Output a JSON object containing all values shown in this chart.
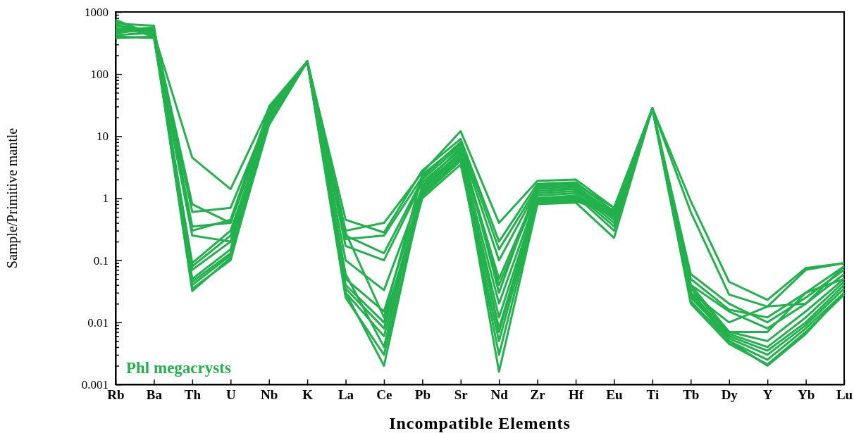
{
  "chart_data": {
    "type": "line",
    "xlabel": "Incompatible Elements",
    "ylabel": "Sample/Primitive mantle",
    "log": true,
    "grid": false,
    "marker": "none",
    "line_style": "solid",
    "categories": [
      "Rb",
      "Ba",
      "Th",
      "U",
      "Nb",
      "K",
      "La",
      "Ce",
      "Pb",
      "Sr",
      "Nd",
      "Zr",
      "Hf",
      "Eu",
      "Ti",
      "Tb",
      "Dy",
      "Y",
      "Yb",
      "Lu"
    ],
    "ylim": [
      0.001,
      1000
    ],
    "yticks": [
      {
        "value": 0.001,
        "label": "0.001"
      },
      {
        "value": 0.002,
        "label": null
      },
      {
        "value": 0.003,
        "label": null
      },
      {
        "value": 0.004,
        "label": null
      },
      {
        "value": 0.005,
        "label": null
      },
      {
        "value": 0.006,
        "label": null
      },
      {
        "value": 0.007,
        "label": null
      },
      {
        "value": 0.008,
        "label": null
      },
      {
        "value": 0.009,
        "label": null
      },
      {
        "value": 0.01,
        "label": "0.01"
      },
      {
        "value": 0.02,
        "label": null
      },
      {
        "value": 0.03,
        "label": null
      },
      {
        "value": 0.04,
        "label": null
      },
      {
        "value": 0.05,
        "label": null
      },
      {
        "value": 0.06,
        "label": null
      },
      {
        "value": 0.07,
        "label": null
      },
      {
        "value": 0.08,
        "label": null
      },
      {
        "value": 0.09,
        "label": null
      },
      {
        "value": 0.1,
        "label": "0.1"
      },
      {
        "value": 0.2,
        "label": null
      },
      {
        "value": 0.3,
        "label": null
      },
      {
        "value": 0.4,
        "label": null
      },
      {
        "value": 0.5,
        "label": null
      },
      {
        "value": 0.6,
        "label": null
      },
      {
        "value": 0.7,
        "label": null
      },
      {
        "value": 0.8,
        "label": null
      },
      {
        "value": 0.9,
        "label": null
      },
      1,
      {
        "value": 2,
        "label": null
      },
      {
        "value": 3,
        "label": null
      },
      {
        "value": 4,
        "label": null
      },
      {
        "value": 5,
        "label": null
      },
      {
        "value": 6,
        "label": null
      },
      {
        "value": 7,
        "label": null
      },
      {
        "value": 8,
        "label": null
      },
      {
        "value": 9,
        "label": null
      },
      10,
      {
        "value": 20,
        "label": null
      },
      {
        "value": 30,
        "label": null
      },
      {
        "value": 40,
        "label": null
      },
      {
        "value": 50,
        "label": null
      },
      {
        "value": 60,
        "label": null
      },
      {
        "value": 70,
        "label": null
      },
      {
        "value": 80,
        "label": null
      },
      {
        "value": 90,
        "label": null
      },
      100,
      {
        "value": 200,
        "label": null
      },
      {
        "value": 300,
        "label": null
      },
      {
        "value": 400,
        "label": null
      },
      {
        "value": 500,
        "label": null
      },
      {
        "value": 600,
        "label": null
      },
      {
        "value": 700,
        "label": null
      },
      {
        "value": 800,
        "label": null
      },
      {
        "value": 900,
        "label": null
      },
      1000
    ],
    "annotations": [
      "Phl megacrysts"
    ],
    "series": [
      {
        "color": "#22b14c",
        "values": [
          700,
          450,
          4.5,
          1.4,
          28,
          160,
          0.3,
          0.4,
          2.6,
          12,
          0.4,
          1.9,
          2.0,
          0.7,
          28,
          0.9,
          0.045,
          0.023,
          0.075,
          0.09
        ]
      },
      {
        "color": "#22b14c",
        "values": [
          600,
          500,
          0.8,
          0.4,
          25,
          160,
          0.45,
          0.28,
          2.8,
          9,
          0.2,
          1.7,
          1.8,
          0.6,
          28,
          0.6,
          0.028,
          0.018,
          0.07,
          0.09
        ]
      },
      {
        "color": "#22b14c",
        "values": [
          500,
          480,
          0.6,
          0.7,
          22,
          160,
          0.22,
          0.25,
          2.2,
          8,
          0.15,
          1.5,
          1.6,
          0.55,
          28,
          0.05,
          0.016,
          0.012,
          0.03,
          0.08
        ]
      },
      {
        "color": "#22b14c",
        "values": [
          450,
          550,
          0.35,
          0.4,
          20,
          160,
          0.25,
          0.13,
          2,
          7,
          0.1,
          1.4,
          1.5,
          0.5,
          28,
          0.06,
          0.02,
          0.01,
          0.025,
          0.07
        ]
      },
      {
        "color": "#22b14c",
        "values": [
          400,
          380,
          0.25,
          0.2,
          18,
          160,
          0.17,
          0.1,
          1.8,
          6,
          0.05,
          1.3,
          1.4,
          0.45,
          28,
          0.04,
          0.015,
          0.008,
          0.02,
          0.06
        ]
      },
      {
        "color": "#22b14c",
        "values": [
          380,
          400,
          0.09,
          0.3,
          17,
          160,
          0.1,
          0.033,
          1.5,
          5.5,
          0.04,
          1.2,
          1.3,
          0.4,
          28,
          0.035,
          0.007,
          0.005,
          0.015,
          0.05
        ]
      },
      {
        "color": "#22b14c",
        "values": [
          750,
          420,
          0.07,
          0.2,
          16,
          160,
          0.05,
          0.015,
          1.4,
          5,
          0.02,
          1.1,
          1.2,
          0.35,
          28,
          0.03,
          0.0065,
          0.004,
          0.012,
          0.045
        ]
      },
      {
        "color": "#22b14c",
        "values": [
          650,
          600,
          0.05,
          0.15,
          30,
          160,
          0.04,
          0.01,
          1.2,
          4.5,
          0.012,
          1.0,
          1.1,
          0.3,
          28,
          0.025,
          0.006,
          0.0035,
          0.01,
          0.04
        ]
      },
      {
        "color": "#22b14c",
        "values": [
          550,
          450,
          0.04,
          0.12,
          24,
          160,
          0.035,
          0.008,
          1.1,
          4,
          0.008,
          0.95,
          1.0,
          0.65,
          28,
          0.03,
          0.0055,
          0.003,
          0.009,
          0.035
        ]
      },
      {
        "color": "#22b14c",
        "values": [
          480,
          520,
          0.035,
          0.1,
          19,
          160,
          0.03,
          0.006,
          1.0,
          3.5,
          0.005,
          0.9,
          0.95,
          0.6,
          28,
          0.022,
          0.005,
          0.0025,
          0.008,
          0.03
        ]
      },
      {
        "color": "#22b14c",
        "values": [
          420,
          470,
          0.032,
          0.11,
          15,
          160,
          0.025,
          0.003,
          1.1,
          4.2,
          0.003,
          0.85,
          0.9,
          0.55,
          28,
          0.02,
          0.0045,
          0.0021,
          0.007,
          0.028
        ]
      },
      {
        "color": "#22b14c",
        "values": [
          620,
          400,
          0.045,
          0.13,
          26,
          160,
          0.03,
          0.002,
          1.3,
          5,
          0.0016,
          0.8,
          0.85,
          0.23,
          28,
          0.028,
          0.005,
          0.002,
          0.0065,
          0.03
        ]
      },
      {
        "color": "#22b14c",
        "values": [
          700,
          430,
          0.08,
          0.25,
          21,
          160,
          0.06,
          0.004,
          1.6,
          6.5,
          0.007,
          1.0,
          1.05,
          0.5,
          28,
          0.04,
          0.007,
          0.007,
          0.03,
          0.05
        ]
      },
      {
        "color": "#22b14c",
        "values": [
          520,
          560,
          0.3,
          0.45,
          27,
          160,
          0.28,
          0.012,
          2.4,
          7.5,
          0.03,
          1.6,
          1.7,
          0.7,
          28,
          0.03,
          0.01,
          0.018,
          0.02,
          0.08
        ]
      }
    ]
  }
}
